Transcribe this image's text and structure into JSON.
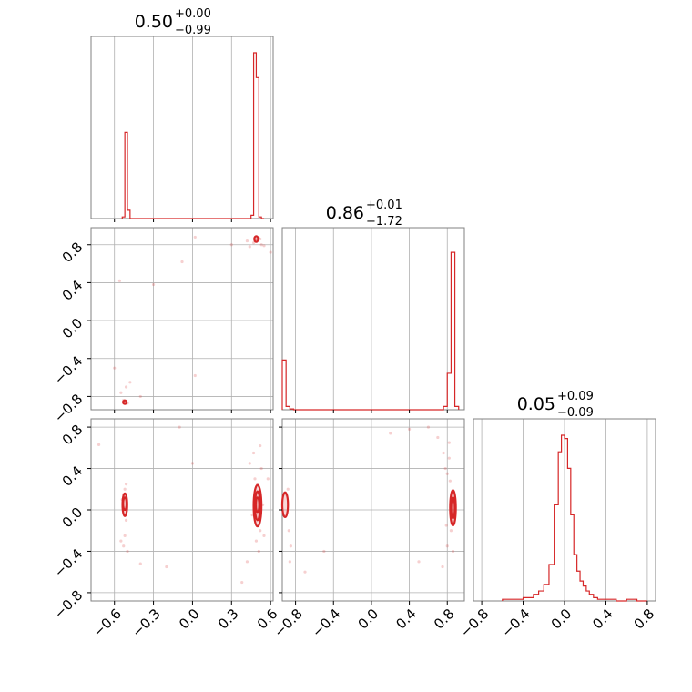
{
  "chart_data": {
    "type": "corner",
    "color": "#d62728",
    "titles": [
      {
        "median": "0.50",
        "plus": "+0.00",
        "minus": "−0.99"
      },
      {
        "median": "0.86",
        "plus": "+0.01",
        "minus": "−1.72"
      },
      {
        "median": "0.05",
        "plus": "+0.09",
        "minus": "−0.09"
      }
    ],
    "axes": [
      {
        "range": [
          -0.78,
          0.62
        ],
        "ticks": [
          -0.6,
          -0.3,
          0.0,
          0.3,
          0.6
        ],
        "tick_labels": [
          "−0.6",
          "−0.3",
          "0.0",
          "0.3",
          "0.6"
        ]
      },
      {
        "range": [
          -0.94,
          0.98
        ],
        "ticks": [
          -0.8,
          -0.4,
          0.0,
          0.4,
          0.8
        ],
        "tick_labels": [
          "−0.8",
          "−0.4",
          "0.0",
          "0.4",
          "0.8"
        ]
      },
      {
        "range": [
          -0.88,
          0.88
        ],
        "ticks": [
          -0.8,
          -0.4,
          0.0,
          0.4,
          0.8
        ],
        "tick_labels": [
          "−0.8",
          "−0.4",
          "0.0",
          "0.4",
          "0.8"
        ]
      }
    ],
    "histograms": [
      {
        "param": 0,
        "edges": [
          -0.54,
          -0.52,
          -0.5,
          -0.48,
          0.45,
          0.47,
          0.49,
          0.51,
          0.53,
          0.55
        ],
        "counts": [
          0.01,
          0.52,
          0.05,
          0,
          0.02,
          1.0,
          0.85,
          0.01,
          0.0
        ]
      },
      {
        "param": 1,
        "edges": [
          -0.94,
          -0.9,
          -0.86,
          -0.82,
          0.76,
          0.8,
          0.84,
          0.88,
          0.92
        ],
        "counts": [
          0.3,
          0.02,
          0.005,
          0,
          0.02,
          0.22,
          0.95,
          0.02
        ]
      },
      {
        "param": 2,
        "edges": [
          -0.6,
          -0.5,
          -0.4,
          -0.3,
          -0.25,
          -0.2,
          -0.15,
          -0.1,
          -0.06,
          -0.03,
          0.0,
          0.03,
          0.06,
          0.09,
          0.12,
          0.15,
          0.18,
          0.21,
          0.24,
          0.28,
          0.32,
          0.36,
          0.4,
          0.5,
          0.6,
          0.7,
          0.8
        ],
        "counts": [
          0.01,
          0.01,
          0.02,
          0.04,
          0.06,
          0.1,
          0.22,
          0.58,
          0.9,
          1.0,
          0.98,
          0.8,
          0.52,
          0.28,
          0.18,
          0.12,
          0.09,
          0.06,
          0.04,
          0.02,
          0.01,
          0.01,
          0.01,
          0.0,
          0.01,
          0.0
        ]
      }
    ],
    "pairs": [
      {
        "x_param": 0,
        "y_param": 1,
        "points": [
          [
            0.49,
            0.86
          ],
          [
            0.5,
            0.85
          ],
          [
            0.51,
            0.87
          ],
          [
            0.48,
            0.84
          ],
          [
            0.52,
            0.86
          ],
          [
            0.47,
            0.82
          ],
          [
            0.53,
            0.8
          ],
          [
            0.42,
            0.84
          ],
          [
            0.55,
            0.79
          ],
          [
            0.44,
            0.78
          ],
          [
            -0.52,
            -0.85
          ],
          [
            -0.5,
            -0.87
          ],
          [
            -0.53,
            -0.84
          ],
          [
            -0.55,
            -0.76
          ],
          [
            -0.51,
            -0.7
          ],
          [
            -0.48,
            -0.65
          ],
          [
            -0.6,
            -0.5
          ],
          [
            -0.56,
            0.42
          ],
          [
            -0.3,
            0.38
          ],
          [
            -0.08,
            0.62
          ],
          [
            0.02,
            0.88
          ],
          [
            0.02,
            -0.58
          ],
          [
            -0.4,
            -0.8
          ],
          [
            0.3,
            0.8
          ],
          [
            0.6,
            0.72
          ]
        ],
        "contours": [
          {
            "cx": 0.49,
            "cy": 0.86,
            "rx": 0.015,
            "ry": 0.03
          },
          {
            "cx": -0.52,
            "cy": -0.86,
            "rx": 0.01,
            "ry": 0.01
          }
        ]
      },
      {
        "x_param": 0,
        "y_param": 2,
        "points": [
          [
            -0.52,
            0.2
          ],
          [
            -0.53,
            0.15
          ],
          [
            -0.51,
            -0.1
          ],
          [
            -0.52,
            -0.25
          ],
          [
            -0.53,
            -0.35
          ],
          [
            -0.5,
            -0.4
          ],
          [
            -0.54,
            0.1
          ],
          [
            -0.51,
            0.25
          ],
          [
            -0.55,
            -0.3
          ],
          [
            0.48,
            0.3
          ],
          [
            0.5,
            0.25
          ],
          [
            0.52,
            -0.2
          ],
          [
            0.49,
            -0.3
          ],
          [
            0.51,
            -0.4
          ],
          [
            0.53,
            0.4
          ],
          [
            0.47,
            0.55
          ],
          [
            0.52,
            0.62
          ],
          [
            0.44,
            0.45
          ],
          [
            0.55,
            -0.25
          ],
          [
            0.42,
            -0.5
          ],
          [
            0.38,
            -0.7
          ],
          [
            -0.4,
            -0.52
          ],
          [
            -0.2,
            -0.55
          ],
          [
            0.0,
            0.45
          ],
          [
            -0.1,
            0.8
          ],
          [
            -0.72,
            0.63
          ],
          [
            0.58,
            0.3
          ],
          [
            0.46,
            -0.05
          ],
          [
            0.54,
            0.05
          ]
        ],
        "contours": [
          {
            "cx": -0.52,
            "cy": 0.06,
            "rx": 0.008,
            "ry": 0.06
          },
          {
            "cx": -0.52,
            "cy": 0.05,
            "rx": 0.018,
            "ry": 0.11
          },
          {
            "cx": 0.5,
            "cy": 0.05,
            "rx": 0.01,
            "ry": 0.07
          },
          {
            "cx": 0.5,
            "cy": 0.04,
            "rx": 0.02,
            "ry": 0.14
          },
          {
            "cx": 0.5,
            "cy": 0.04,
            "rx": 0.03,
            "ry": 0.2
          }
        ]
      },
      {
        "x_param": 1,
        "y_param": 2,
        "points": [
          [
            -0.88,
            0.2
          ],
          [
            -0.87,
            -0.2
          ],
          [
            -0.85,
            -0.35
          ],
          [
            -0.9,
            0.15
          ],
          [
            -0.86,
            -0.5
          ],
          [
            0.8,
            0.35
          ],
          [
            0.82,
            0.5
          ],
          [
            0.78,
            0.4
          ],
          [
            0.84,
            -0.2
          ],
          [
            0.8,
            -0.35
          ],
          [
            0.83,
            0.28
          ],
          [
            0.86,
            -0.4
          ],
          [
            0.76,
            0.55
          ],
          [
            0.7,
            0.7
          ],
          [
            0.6,
            0.8
          ],
          [
            0.4,
            0.78
          ],
          [
            0.2,
            0.74
          ],
          [
            0.5,
            -0.5
          ],
          [
            0.75,
            -0.55
          ],
          [
            -0.7,
            -0.6
          ],
          [
            -0.5,
            -0.4
          ],
          [
            0.82,
            0.65
          ],
          [
            0.79,
            -0.15
          ]
        ],
        "contours": [
          {
            "cx": -0.91,
            "cy": 0.05,
            "rx": 0.03,
            "ry": 0.12
          },
          {
            "cx": 0.86,
            "cy": 0.02,
            "rx": 0.015,
            "ry": 0.1
          },
          {
            "cx": 0.86,
            "cy": 0.02,
            "rx": 0.03,
            "ry": 0.17
          }
        ]
      }
    ]
  }
}
